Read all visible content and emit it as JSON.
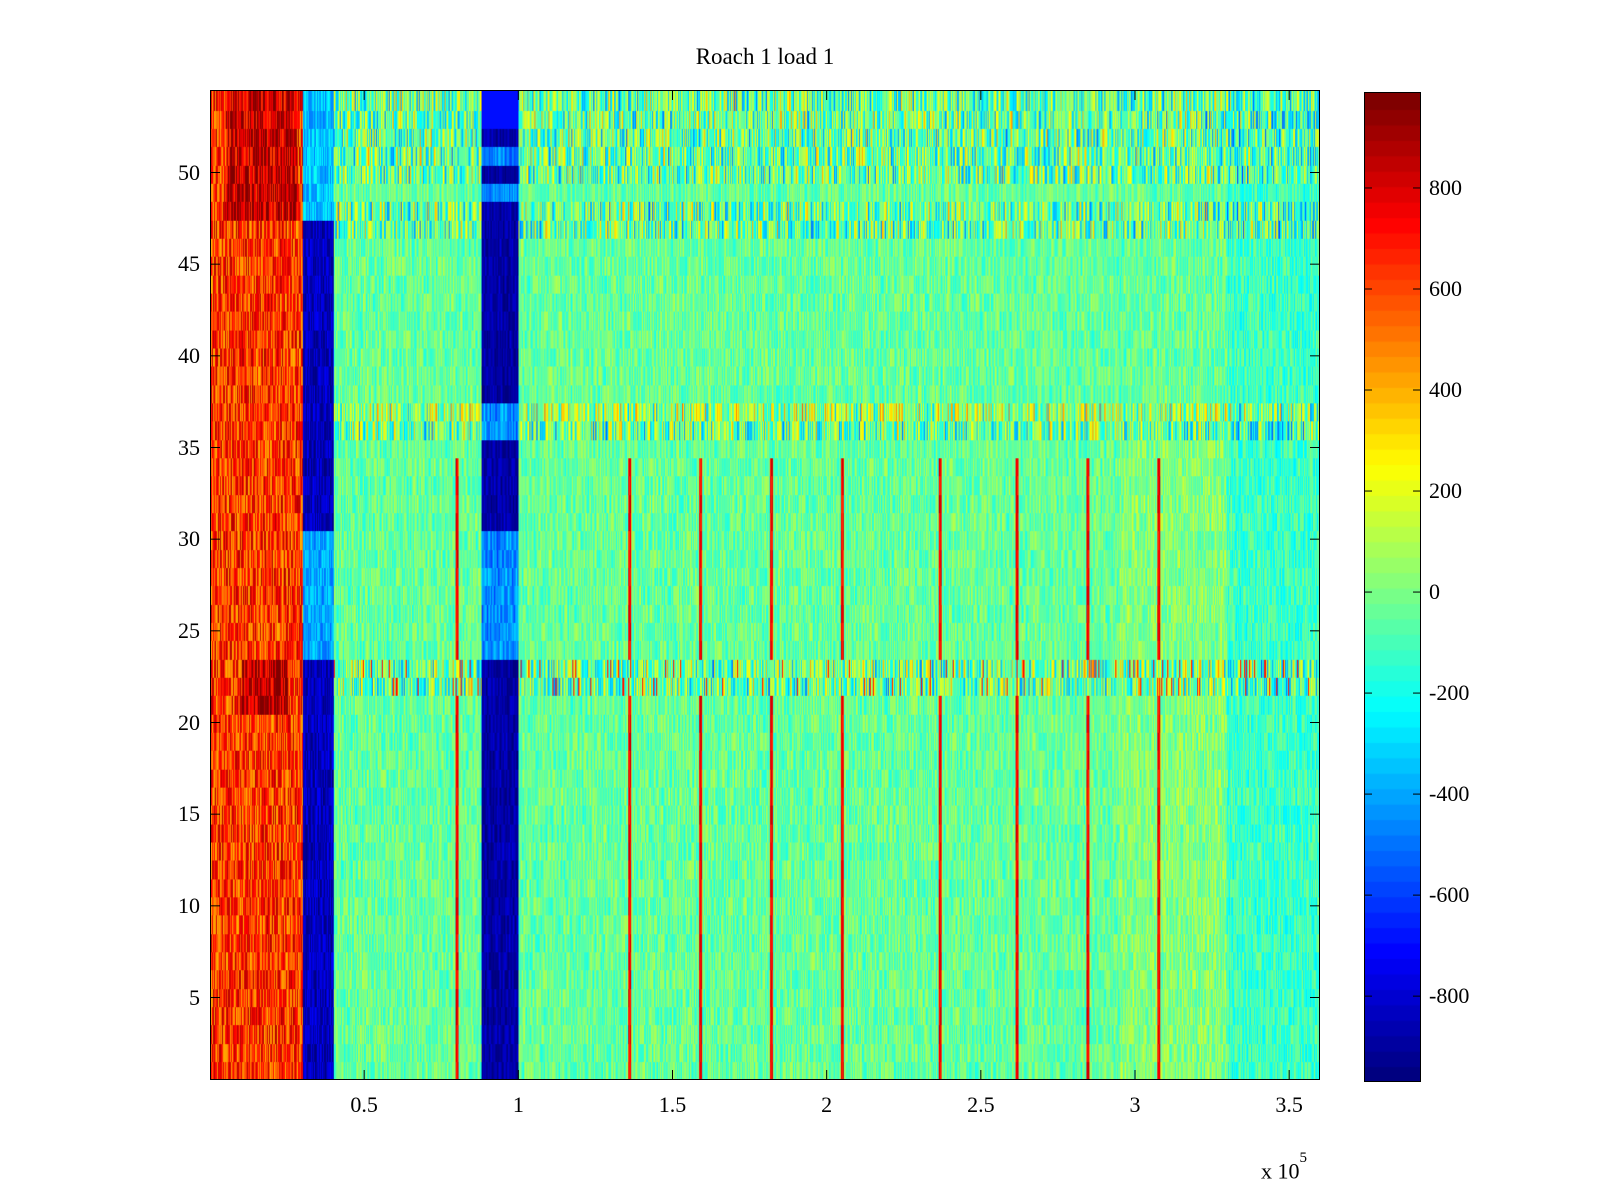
{
  "chart_data": {
    "type": "heatmap",
    "title": "Roach 1 load 1",
    "xlabel": "",
    "ylabel": "",
    "x_range": [
      0,
      360000
    ],
    "y_range": [
      0.5,
      54.5
    ],
    "x_exponent_label": "x 10",
    "x_exponent_power": "5",
    "x_ticks": [
      {
        "value": 50000,
        "label": "0.5"
      },
      {
        "value": 100000,
        "label": "1"
      },
      {
        "value": 150000,
        "label": "1.5"
      },
      {
        "value": 200000,
        "label": "2"
      },
      {
        "value": 250000,
        "label": "2.5"
      },
      {
        "value": 300000,
        "label": "3"
      },
      {
        "value": 350000,
        "label": "3.5"
      }
    ],
    "y_ticks": [
      {
        "value": 5,
        "label": "5"
      },
      {
        "value": 10,
        "label": "10"
      },
      {
        "value": 15,
        "label": "15"
      },
      {
        "value": 20,
        "label": "20"
      },
      {
        "value": 25,
        "label": "25"
      },
      {
        "value": 30,
        "label": "30"
      },
      {
        "value": 35,
        "label": "35"
      },
      {
        "value": 40,
        "label": "40"
      },
      {
        "value": 45,
        "label": "45"
      },
      {
        "value": 50,
        "label": "50"
      }
    ],
    "colormap": "jet",
    "clim": [
      -970,
      990
    ],
    "colorbar_ticks": [
      {
        "value": 800,
        "label": "800"
      },
      {
        "value": 600,
        "label": "600"
      },
      {
        "value": 400,
        "label": "400"
      },
      {
        "value": 200,
        "label": "200"
      },
      {
        "value": 0,
        "label": "0"
      },
      {
        "value": -200,
        "label": "-200"
      },
      {
        "value": -400,
        "label": "-400"
      },
      {
        "value": -600,
        "label": "-600"
      },
      {
        "value": -800,
        "label": "-800"
      }
    ],
    "rows": 54,
    "regions": [
      {
        "x": [
          0,
          30000
        ],
        "rows": [
          1,
          54
        ],
        "value": 650,
        "note_rows_hot": [
          1,
          54
        ]
      },
      {
        "x": [
          30000,
          40000
        ],
        "rows": [
          1,
          47
        ],
        "value": -850
      },
      {
        "x": [
          88000,
          100000
        ],
        "rows": [
          1,
          54
        ],
        "value": -900
      }
    ],
    "background_value": -40,
    "red_streak_x": [
      80000,
      136000,
      159000,
      182000,
      205000,
      237000,
      262000,
      285000,
      308000
    ],
    "noisy_rows": [
      22,
      23,
      36,
      37,
      47,
      48,
      50,
      51,
      52,
      53,
      54
    ]
  }
}
